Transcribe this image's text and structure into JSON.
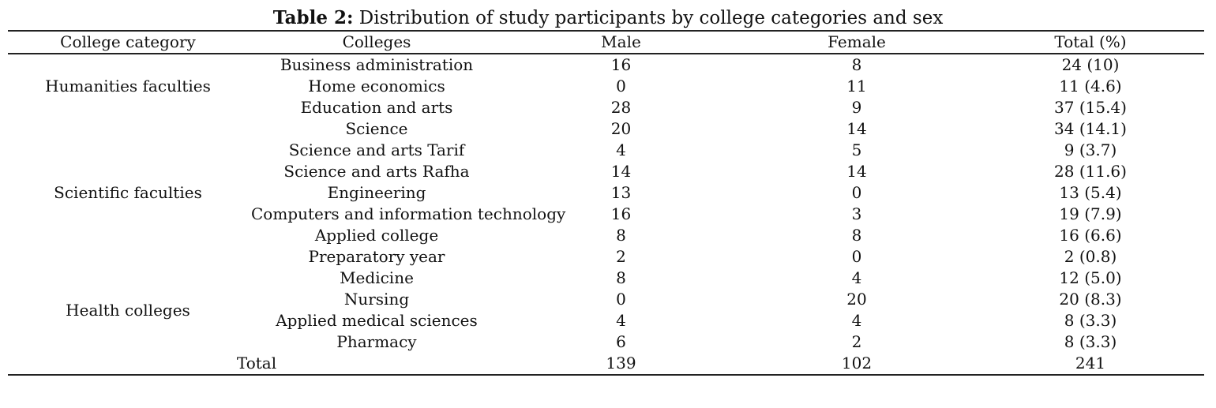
{
  "caption": {
    "label": "Table 2:",
    "text": " Distribution of study participants by college categories and sex"
  },
  "columns": [
    "College category",
    "Colleges",
    "Male",
    "Female",
    "Total (%)"
  ],
  "groups": [
    {
      "category": "Humanities faculties",
      "rows": [
        {
          "college": "Business administration",
          "male": "16",
          "female": "8",
          "total": "24 (10)"
        },
        {
          "college": "Home economics",
          "male": "0",
          "female": "11",
          "total": "11 (4.6)"
        },
        {
          "college": "Education and arts",
          "male": "28",
          "female": "9",
          "total": "37 (15.4)"
        }
      ]
    },
    {
      "category": "Scientific faculties",
      "rows": [
        {
          "college": "Science",
          "male": "20",
          "female": "14",
          "total": "34 (14.1)"
        },
        {
          "college": "Science and arts Tarif",
          "male": "4",
          "female": "5",
          "total": "9 (3.7)"
        },
        {
          "college": "Science and arts Rafha",
          "male": "14",
          "female": "14",
          "total": "28 (11.6)"
        },
        {
          "college": "Engineering",
          "male": "13",
          "female": "0",
          "total": "13 (5.4)"
        },
        {
          "college": "Computers and information technology",
          "male": "16",
          "female": "3",
          "total": "19 (7.9)"
        },
        {
          "college": "Applied college",
          "male": "8",
          "female": "8",
          "total": "16 (6.6)"
        },
        {
          "college": "Preparatory year",
          "male": "2",
          "female": "0",
          "total": "2 (0.8)"
        }
      ]
    },
    {
      "category": "Health colleges",
      "rows": [
        {
          "college": "Medicine",
          "male": "8",
          "female": "4",
          "total": "12 (5.0)"
        },
        {
          "college": "Nursing",
          "male": "0",
          "female": "20",
          "total": "20 (8.3)"
        },
        {
          "college": "Applied medical sciences",
          "male": "4",
          "female": "4",
          "total": "8 (3.3)"
        },
        {
          "college": "Pharmacy",
          "male": "6",
          "female": "2",
          "total": "8 (3.3)"
        }
      ]
    }
  ],
  "total": {
    "label": "Total",
    "male": "139",
    "female": "102",
    "total": "241"
  }
}
